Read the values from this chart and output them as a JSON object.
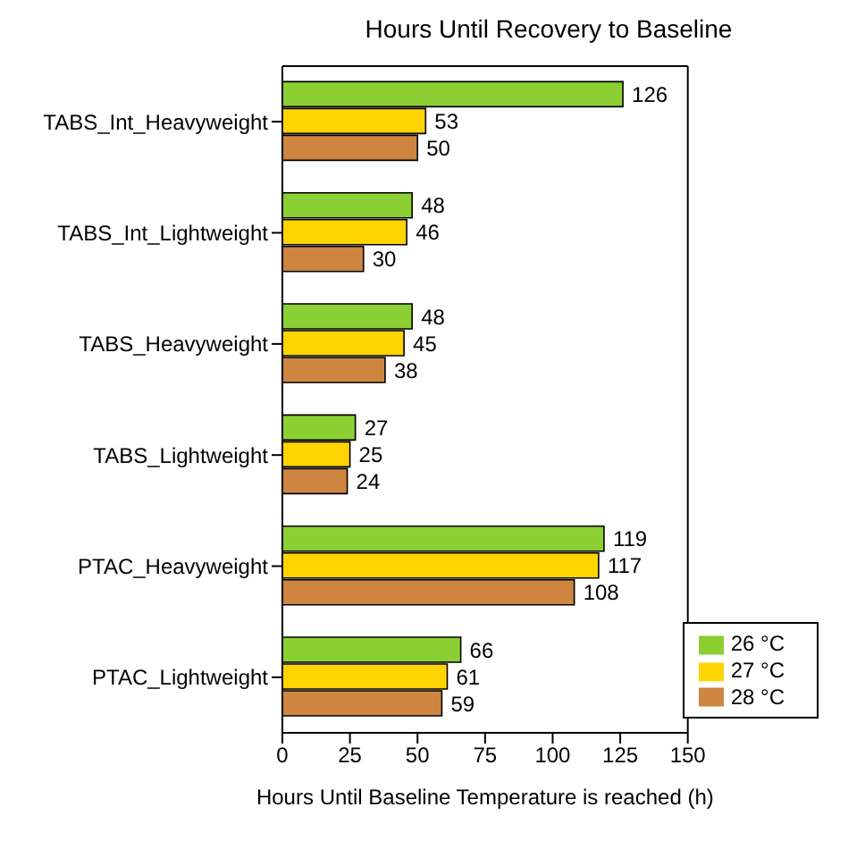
{
  "chart_data": {
    "type": "bar",
    "orientation": "horizontal",
    "title": "Hours Until Recovery to Baseline",
    "xlabel": "Hours Until Baseline Temperature is reached (h)",
    "categories": [
      "TABS_Int_Heavyweight",
      "TABS_Int_Lightweight",
      "TABS_Heavyweight",
      "TABS_Lightweight",
      "PTAC_Heavyweight",
      "PTAC_Lightweight"
    ],
    "series": [
      {
        "name": "26 °C",
        "color": "#8ccf32",
        "values": [
          126,
          48,
          48,
          27,
          119,
          66
        ]
      },
      {
        "name": "27 °C",
        "color": "#ffd400",
        "values": [
          53,
          46,
          45,
          25,
          117,
          61
        ]
      },
      {
        "name": "28 °C",
        "color": "#cd8540",
        "values": [
          50,
          30,
          38,
          24,
          108,
          59
        ]
      }
    ],
    "xlim": [
      0,
      150
    ],
    "xticks": [
      0,
      25,
      50,
      75,
      100,
      125,
      150
    ],
    "data_labels": true,
    "legend": "bottom right",
    "grid": false
  }
}
